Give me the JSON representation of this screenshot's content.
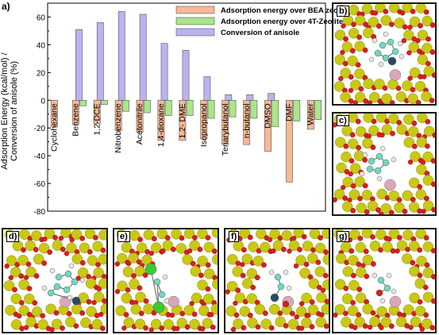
{
  "figure": {
    "main_label": "a)",
    "panel_labels": [
      "b)",
      "c)",
      "d)",
      "e)",
      "f)",
      "g)"
    ]
  },
  "chart_data": {
    "type": "bar",
    "categories": [
      "Cyclohexane",
      "Benzene",
      "1,2-DCE",
      "Nitrobenzene",
      "Acetonitrile",
      "1,4-dioxane",
      "1,2- DME",
      "Isopropanol",
      "Teriarybutanol",
      "n-butanol",
      "DMSO",
      "DMF",
      "Water"
    ],
    "series": [
      {
        "name": "Adsorption energy over BEA zeolite",
        "color": "#f7b995",
        "values": [
          -19,
          -17.5,
          -17,
          -22,
          -23,
          -29,
          -29,
          -28,
          -32,
          -32,
          -37,
          -59,
          -21
        ]
      },
      {
        "name": "Adsorption energy over 4T-Zeolite",
        "color": "#a9e68a",
        "values": [
          0,
          -4,
          -3,
          -8,
          -9,
          -11,
          -11,
          -13,
          -12,
          -13,
          -19,
          -15,
          -14
        ]
      },
      {
        "name": "Conversion of anisole",
        "color": "#b9b4f0",
        "values": [
          0,
          51,
          56,
          64,
          62,
          41,
          36,
          17,
          4,
          4,
          5,
          0,
          0
        ]
      }
    ],
    "ylabel_line1": "Adsorption Energy (kcal/mol) /",
    "ylabel_line2": "Conversion of anisole (%)",
    "ylim": [
      -80,
      70
    ],
    "yticks": [
      -80,
      -60,
      -40,
      -20,
      0,
      20,
      40,
      60
    ],
    "legend_position": "top-right",
    "grid": false
  },
  "colors": {
    "si_atom": "#c8c815",
    "o_atom": "#d42020",
    "al_atom": "#d8a8b8",
    "c_atom": "#6fd8c0",
    "h_atom": "#e8e8e8",
    "n_atom": "#2a4a6a",
    "cl_atom": "#3acc30"
  }
}
